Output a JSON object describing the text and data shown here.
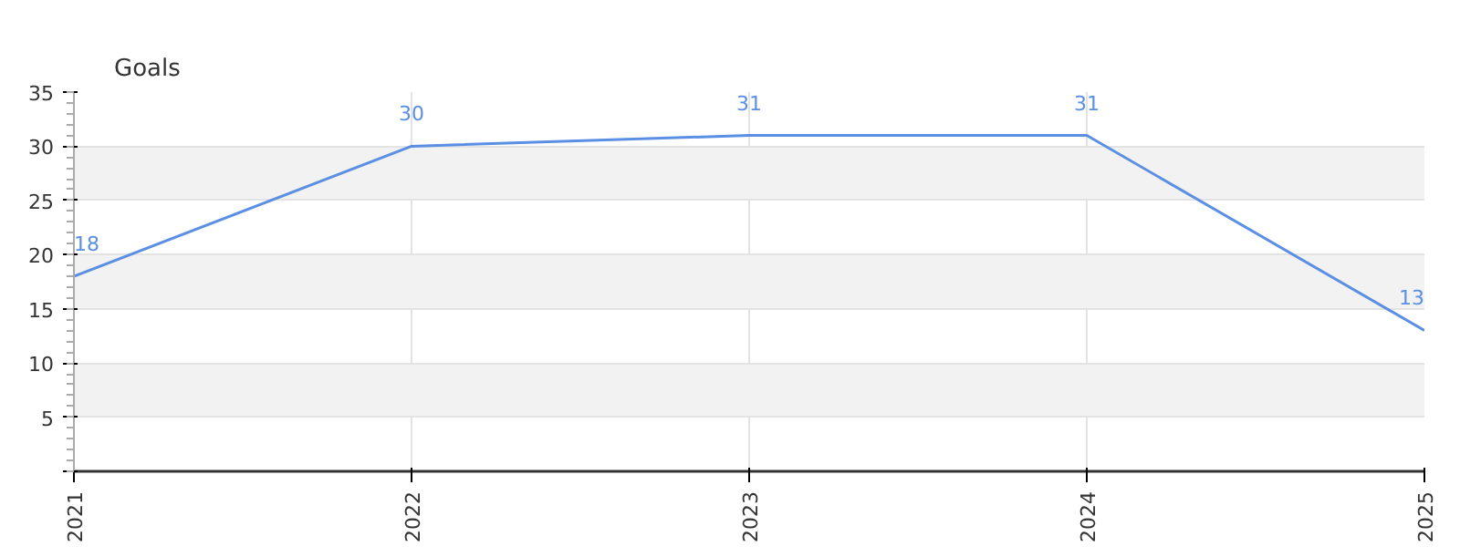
{
  "chart_data": {
    "type": "line",
    "ylabel": "Goals",
    "x": [
      2021,
      2022,
      2023,
      2024,
      2025
    ],
    "series": [
      {
        "color": "#5b8fe3",
        "values": [
          18,
          30,
          31,
          31,
          13
        ]
      }
    ],
    "xlim": [
      2021,
      2025
    ],
    "xticks": [
      2021,
      2022,
      2023,
      2024,
      2025
    ],
    "ylim": [
      0,
      35
    ],
    "yticks": [
      {
        "value": 0,
        "label": null
      },
      5,
      10,
      15,
      20,
      25,
      30,
      35
    ],
    "grid": true,
    "data_labels": true,
    "marker": "none",
    "line_style": "solid"
  }
}
